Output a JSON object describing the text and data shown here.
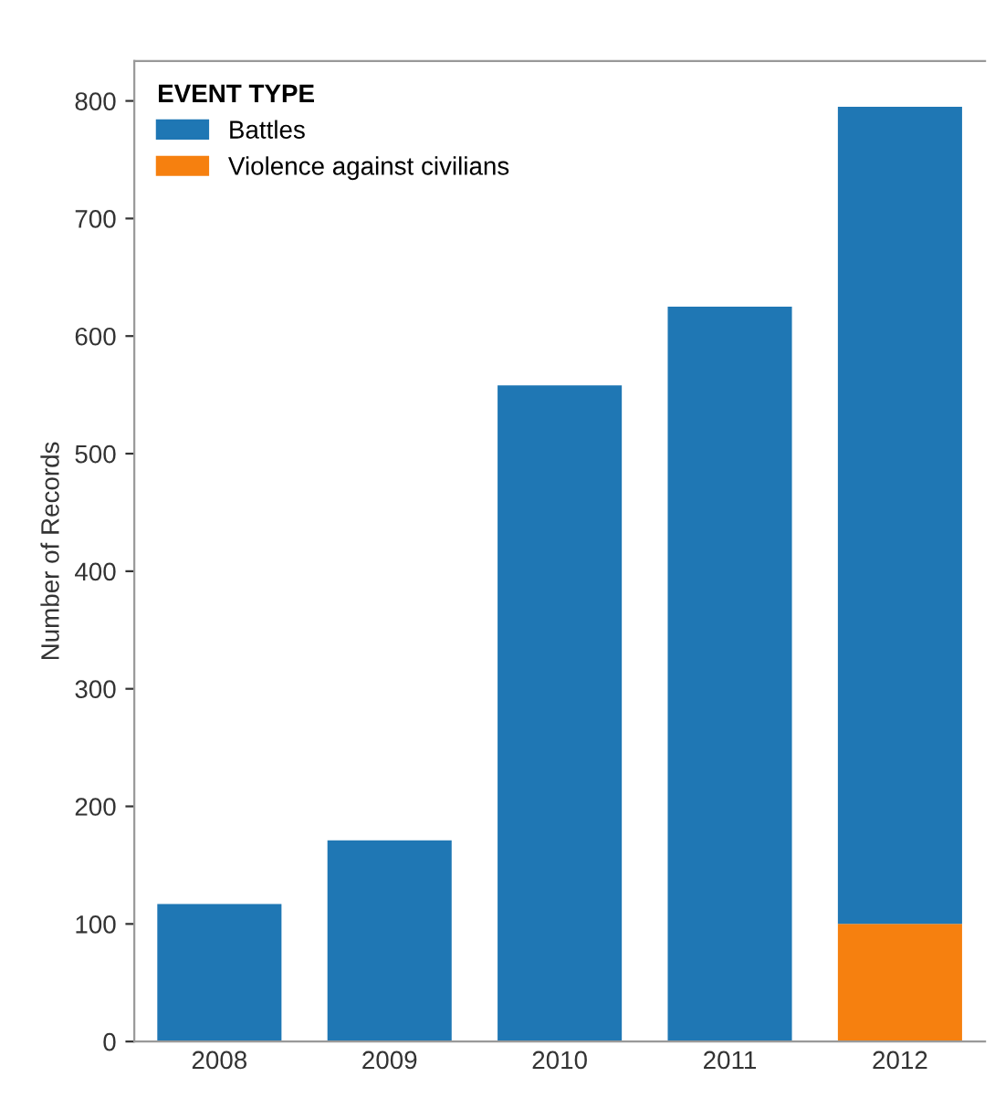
{
  "chart_data": {
    "type": "bar",
    "stacked": true,
    "ylabel": "Number of Records",
    "legend_title": "EVENT TYPE",
    "categories": [
      "2008",
      "2009",
      "2010",
      "2011",
      "2012"
    ],
    "series": [
      {
        "name": "Violence against civilians",
        "color": "#f6800f",
        "values": [
          null,
          null,
          null,
          null,
          100
        ]
      },
      {
        "name": "Battles",
        "color": "#1f77b4",
        "values": [
          117,
          171,
          558,
          625,
          695
        ]
      }
    ],
    "ylim": [
      0,
      834
    ],
    "yticks": [
      0,
      100,
      200,
      300,
      400,
      500,
      600,
      700,
      800
    ],
    "grid": false,
    "legend": "top left"
  }
}
